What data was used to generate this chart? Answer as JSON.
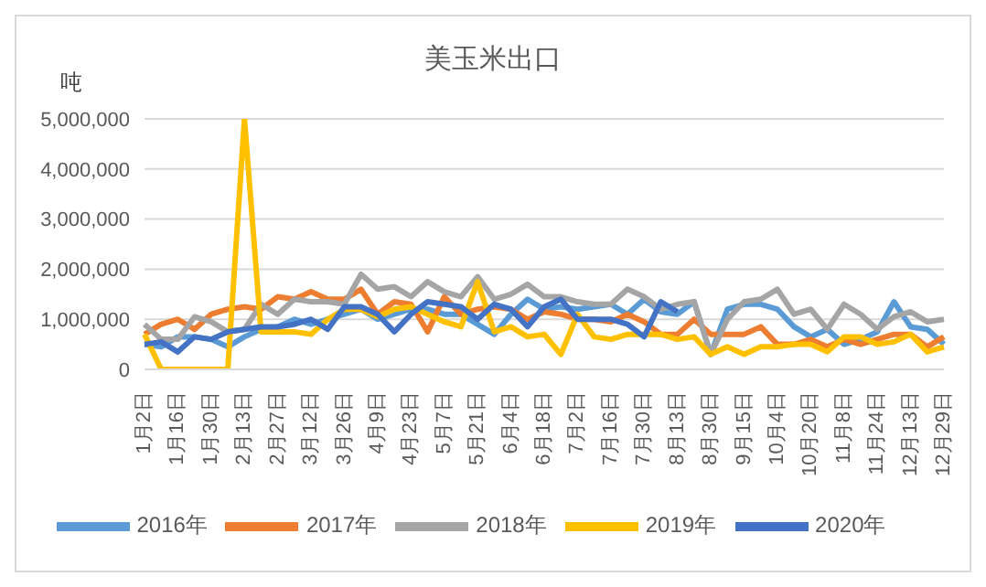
{
  "chart_data": {
    "type": "line",
    "title": "美玉米出口",
    "ylabel": "吨",
    "categories": [
      "1月2日",
      null,
      "1月16日",
      null,
      "1月30日",
      null,
      "2月13日",
      null,
      "2月27日",
      null,
      "3月12日",
      null,
      "3月26日",
      null,
      "4月9日",
      null,
      "4月23日",
      null,
      "5月7日",
      null,
      "5月21日",
      null,
      "6月4日",
      null,
      "6月18日",
      null,
      "7月2日",
      null,
      "7月16日",
      null,
      "7月30日",
      null,
      "8月13日",
      null,
      "8月30日",
      null,
      "9月15日",
      null,
      "10月4日",
      null,
      "10月20日",
      null,
      "11月8日",
      null,
      "11月24日",
      null,
      "12月13日",
      null,
      "12月29日"
    ],
    "series": [
      {
        "name": "2016年",
        "color": "#5b9bd5",
        "values": [
          500000,
          450000,
          650000,
          650000,
          600000,
          450000,
          650000,
          800000,
          850000,
          1000000,
          900000,
          1000000,
          1100000,
          1200000,
          1000000,
          1100000,
          1200000,
          1200000,
          1100000,
          1100000,
          900000,
          700000,
          1100000,
          1400000,
          1200000,
          1250000,
          1200000,
          1250000,
          1300000,
          1100000,
          1400000,
          1150000,
          1100000,
          1350000,
          300000,
          1200000,
          1300000,
          1300000,
          1200000,
          850000,
          650000,
          800000,
          500000,
          600000,
          750000,
          1350000,
          850000,
          800000,
          500000
        ]
      },
      {
        "name": "2017年",
        "color": "#ed7d31",
        "values": [
          700000,
          900000,
          1000000,
          800000,
          1100000,
          1200000,
          1250000,
          1200000,
          1450000,
          1400000,
          1550000,
          1400000,
          1400000,
          1600000,
          1100000,
          1350000,
          1300000,
          750000,
          1450000,
          1100000,
          1200000,
          1250000,
          1200000,
          1000000,
          1150000,
          1100000,
          1000000,
          1000000,
          950000,
          1100000,
          950000,
          700000,
          700000,
          1000000,
          700000,
          700000,
          700000,
          850000,
          500000,
          500000,
          600000,
          450000,
          600000,
          500000,
          600000,
          700000,
          700000,
          450000,
          650000
        ]
      },
      {
        "name": "2018年",
        "color": "#a5a5a5",
        "values": [
          900000,
          600000,
          600000,
          1050000,
          950000,
          750000,
          800000,
          1300000,
          1100000,
          1400000,
          1350000,
          1350000,
          1300000,
          1900000,
          1600000,
          1650000,
          1450000,
          1750000,
          1550000,
          1450000,
          1850000,
          1400000,
          1500000,
          1700000,
          1450000,
          1450000,
          1350000,
          1300000,
          1300000,
          1600000,
          1450000,
          1200000,
          1300000,
          1350000,
          300000,
          1000000,
          1350000,
          1400000,
          1600000,
          1100000,
          1200000,
          800000,
          1300000,
          1100000,
          800000,
          1050000,
          1150000,
          950000,
          1000000
        ]
      },
      {
        "name": "2019年",
        "color": "#ffc000",
        "values": [
          700000,
          0,
          0,
          0,
          0,
          0,
          5000000,
          750000,
          750000,
          750000,
          700000,
          1000000,
          1200000,
          1200000,
          1050000,
          1200000,
          1250000,
          1100000,
          950000,
          850000,
          1750000,
          750000,
          850000,
          650000,
          700000,
          300000,
          1100000,
          650000,
          600000,
          700000,
          700000,
          700000,
          600000,
          650000,
          300000,
          450000,
          300000,
          450000,
          450000,
          500000,
          500000,
          350000,
          650000,
          650000,
          500000,
          550000,
          700000,
          350000,
          450000
        ]
      },
      {
        "name": "2020年",
        "color": "#4472c4",
        "values": [
          500000,
          550000,
          350000,
          650000,
          600000,
          750000,
          800000,
          850000,
          850000,
          900000,
          1000000,
          800000,
          1250000,
          1250000,
          1100000,
          750000,
          1100000,
          1350000,
          1300000,
          1250000,
          1000000,
          1300000,
          1200000,
          850000,
          1250000,
          1400000,
          1000000,
          1000000,
          1000000,
          900000,
          650000,
          1350000,
          1150000,
          null,
          null,
          null,
          null,
          null,
          null,
          null,
          null,
          null,
          null,
          null,
          null,
          null,
          null,
          null,
          null
        ]
      }
    ],
    "ylim": [
      0,
      5000000
    ],
    "yticks": [
      0,
      {
        "value": 1000000,
        "label": "1,000,000"
      },
      {
        "value": 2000000,
        "label": "2,000,000"
      },
      {
        "value": 3000000,
        "label": "3,000,000"
      },
      {
        "value": 4000000,
        "label": "4,000,000"
      },
      {
        "value": 5000000,
        "label": "5,000,000"
      }
    ],
    "grid": "y",
    "legend": "bottom",
    "marker": "none",
    "line_style": "solid"
  }
}
